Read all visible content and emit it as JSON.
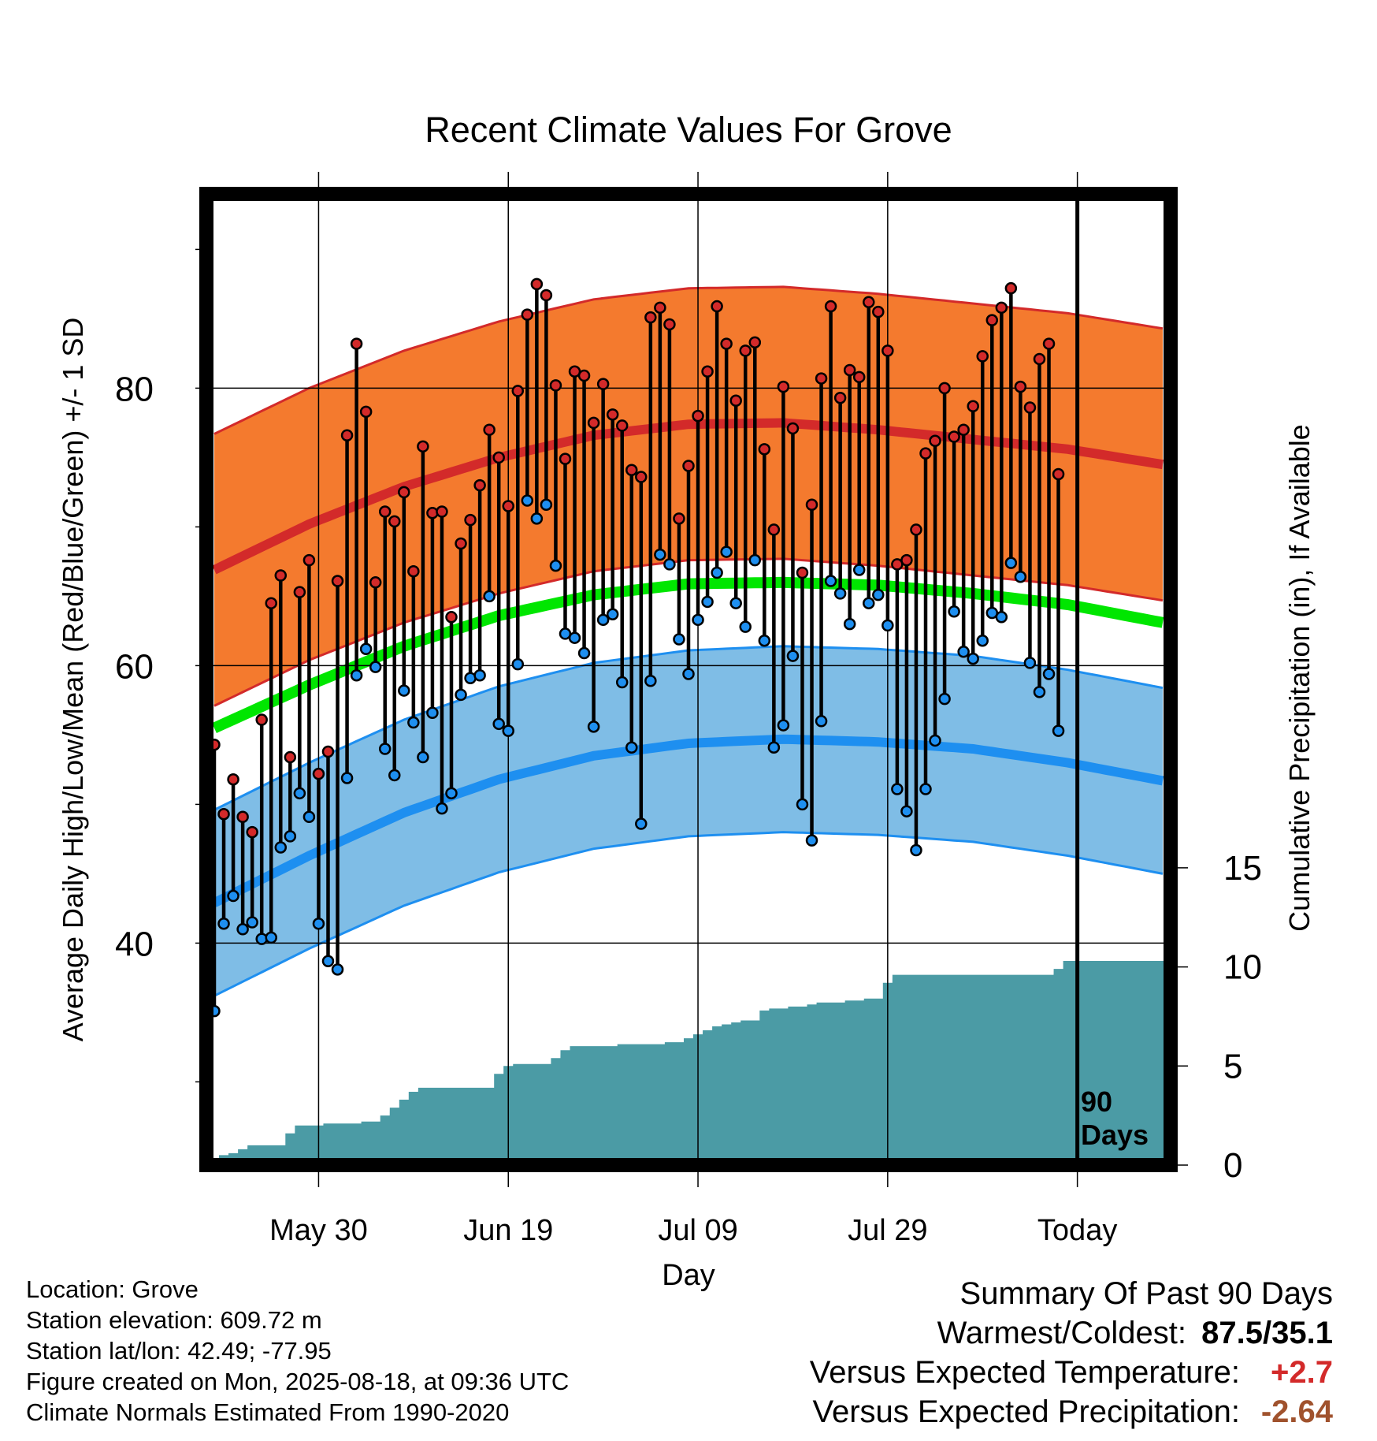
{
  "chart_data": {
    "type": "line",
    "title": "Recent Climate Values For Grove",
    "xlabel": "Day",
    "ylabel": "Average Daily High/Low/Mean (Red/Blue/Green) +/- 1 SD",
    "y2label": "Cumulative Precipitation (in), If Available",
    "x_tick_labels": [
      "May 30",
      "Jun 19",
      "Jul 09",
      "Jul 29",
      "Today"
    ],
    "x_tick_day_index": [
      11,
      31,
      51,
      71,
      91
    ],
    "days": 101,
    "ylim": [
      24,
      94
    ],
    "yticks": [
      40,
      60,
      80
    ],
    "y2lim": [
      0,
      49
    ],
    "y2ticks": [
      0,
      5,
      10,
      15
    ],
    "today_marker": {
      "day_index": 91,
      "label_line1": "90",
      "label_line2": "Days"
    },
    "colors": {
      "high_band": "#f47a2e",
      "high_band_edge": "#d32a2a",
      "high_mean": "#d32a2a",
      "low_band": "#7fbde6",
      "low_band_edge": "#1e8ff0",
      "low_mean": "#1e8ff0",
      "mean": "#00e600",
      "precip": "#4b9ba5",
      "high_point": "#d32a2a",
      "low_point": "#1e8ff0"
    },
    "normal_high": {
      "day_index": [
        0,
        10,
        20,
        30,
        40,
        50,
        60,
        70,
        80,
        90,
        100
      ],
      "values": [
        66.9,
        70.2,
        72.9,
        75.0,
        76.6,
        77.4,
        77.5,
        77.0,
        76.3,
        75.6,
        74.5
      ]
    },
    "normal_high_sd": 9.8,
    "normal_low": {
      "day_index": [
        0,
        10,
        20,
        30,
        40,
        50,
        60,
        70,
        80,
        90,
        100
      ],
      "values": [
        42.9,
        46.3,
        49.4,
        51.8,
        53.5,
        54.4,
        54.7,
        54.5,
        54.0,
        53.0,
        51.7
      ]
    },
    "normal_low_sd": 6.7,
    "normal_mean": {
      "day_index": [
        0,
        10,
        20,
        30,
        40,
        50,
        60,
        70,
        80,
        90,
        100
      ],
      "values": [
        55.5,
        58.6,
        61.4,
        63.6,
        65.1,
        65.9,
        66.0,
        65.8,
        65.2,
        64.4,
        63.1
      ]
    },
    "series": [
      {
        "name": "High",
        "day_index": [
          0,
          1,
          2,
          3,
          4,
          5,
          6,
          7,
          8,
          9,
          10,
          11,
          12,
          13,
          14,
          15,
          16,
          17,
          18,
          19,
          20,
          21,
          22,
          23,
          24,
          25,
          26,
          27,
          28,
          29,
          30,
          31,
          32,
          33,
          34,
          35,
          36,
          37,
          38,
          39,
          40,
          41,
          42,
          43,
          44,
          45,
          46,
          47,
          48,
          49,
          50,
          51,
          52,
          53,
          54,
          55,
          56,
          57,
          58,
          59,
          60,
          61,
          62,
          63,
          64,
          65,
          66,
          67,
          68,
          69,
          70,
          71,
          72,
          73,
          74,
          75,
          76,
          77,
          78,
          79,
          80,
          81,
          82,
          83,
          84,
          85,
          86,
          87,
          88,
          89,
          90
        ],
        "values": [
          54.3,
          49.3,
          51.8,
          49.1,
          48.0,
          56.1,
          64.5,
          66.5,
          53.4,
          65.3,
          67.6,
          52.2,
          53.8,
          66.1,
          76.6,
          83.2,
          78.3,
          66.0,
          71.1,
          70.4,
          72.5,
          66.8,
          75.8,
          71.0,
          71.1,
          63.5,
          68.8,
          70.5,
          73.0,
          77.0,
          75.0,
          71.5,
          79.8,
          85.3,
          87.5,
          86.7,
          80.2,
          74.9,
          81.2,
          80.9,
          77.5,
          80.3,
          78.1,
          77.3,
          74.1,
          73.6,
          85.1,
          85.8,
          84.6,
          70.6,
          74.4,
          78.0,
          81.2,
          85.9,
          83.2,
          79.1,
          82.7,
          83.3,
          75.6,
          69.8,
          80.1,
          77.1,
          66.7,
          71.6,
          80.7,
          85.9,
          79.3,
          81.3,
          80.8,
          86.2,
          85.5,
          82.7,
          67.3,
          67.6,
          69.8,
          75.3,
          76.2,
          80.0,
          76.5,
          77.0,
          78.7,
          82.3,
          84.9,
          85.8,
          87.2,
          80.1,
          78.6,
          82.1,
          83.2,
          73.8,
          null
        ]
      },
      {
        "name": "Low",
        "day_index": [
          0,
          1,
          2,
          3,
          4,
          5,
          6,
          7,
          8,
          9,
          10,
          11,
          12,
          13,
          14,
          15,
          16,
          17,
          18,
          19,
          20,
          21,
          22,
          23,
          24,
          25,
          26,
          27,
          28,
          29,
          30,
          31,
          32,
          33,
          34,
          35,
          36,
          37,
          38,
          39,
          40,
          41,
          42,
          43,
          44,
          45,
          46,
          47,
          48,
          49,
          50,
          51,
          52,
          53,
          54,
          55,
          56,
          57,
          58,
          59,
          60,
          61,
          62,
          63,
          64,
          65,
          66,
          67,
          68,
          69,
          70,
          71,
          72,
          73,
          74,
          75,
          76,
          77,
          78,
          79,
          80,
          81,
          82,
          83,
          84,
          85,
          86,
          87,
          88,
          89,
          90
        ],
        "values": [
          35.1,
          41.4,
          43.4,
          41.0,
          41.5,
          40.3,
          40.4,
          46.9,
          47.7,
          50.8,
          49.1,
          41.4,
          38.7,
          38.1,
          51.9,
          59.3,
          61.2,
          59.9,
          54.0,
          52.1,
          58.2,
          55.9,
          53.4,
          56.6,
          49.7,
          50.8,
          57.9,
          59.1,
          59.3,
          65.0,
          55.8,
          55.3,
          60.1,
          71.9,
          70.6,
          71.6,
          67.2,
          62.3,
          62.0,
          60.9,
          55.6,
          63.3,
          63.7,
          58.8,
          54.1,
          48.6,
          58.9,
          68.0,
          67.3,
          61.9,
          59.4,
          63.3,
          64.6,
          66.7,
          68.2,
          64.5,
          62.8,
          67.6,
          61.8,
          54.1,
          55.7,
          60.7,
          50.0,
          47.4,
          56.0,
          66.1,
          65.2,
          63.0,
          66.9,
          64.5,
          65.1,
          62.9,
          51.1,
          49.5,
          46.7,
          51.1,
          54.6,
          57.6,
          63.9,
          61.0,
          60.5,
          61.8,
          63.8,
          63.5,
          67.4,
          66.4,
          60.2,
          58.1,
          59.4,
          55.3,
          null
        ]
      }
    ],
    "precip_cumulative": {
      "day_index": [
        0,
        1,
        2,
        3,
        4,
        5,
        6,
        7,
        8,
        9,
        10,
        11,
        12,
        13,
        14,
        15,
        16,
        17,
        18,
        19,
        20,
        21,
        22,
        23,
        24,
        25,
        26,
        27,
        28,
        29,
        30,
        31,
        32,
        33,
        34,
        35,
        36,
        37,
        38,
        39,
        40,
        41,
        42,
        43,
        44,
        45,
        46,
        47,
        48,
        49,
        50,
        51,
        52,
        53,
        54,
        55,
        56,
        57,
        58,
        59,
        60,
        61,
        62,
        63,
        64,
        65,
        66,
        67,
        68,
        69,
        70,
        71,
        72,
        73,
        74,
        75,
        76,
        77,
        78,
        79,
        80,
        81,
        82,
        83,
        84,
        85,
        86,
        87,
        88,
        89,
        90,
        91,
        92,
        93,
        94,
        95,
        96,
        97,
        98,
        99,
        100
      ],
      "values": [
        0.3,
        0.5,
        0.6,
        0.8,
        1.0,
        1.0,
        1.0,
        1.0,
        1.6,
        2.0,
        2.0,
        2.0,
        2.1,
        2.1,
        2.1,
        2.1,
        2.2,
        2.2,
        2.5,
        2.9,
        3.3,
        3.7,
        3.9,
        3.9,
        3.9,
        3.9,
        3.9,
        3.9,
        3.9,
        3.9,
        4.6,
        5.0,
        5.1,
        5.1,
        5.1,
        5.1,
        5.4,
        5.8,
        6.0,
        6.0,
        6.0,
        6.0,
        6.0,
        6.1,
        6.1,
        6.1,
        6.1,
        6.1,
        6.2,
        6.2,
        6.4,
        6.6,
        6.8,
        7.0,
        7.1,
        7.2,
        7.3,
        7.3,
        7.8,
        7.9,
        7.9,
        8.0,
        8.0,
        8.1,
        8.2,
        8.2,
        8.2,
        8.3,
        8.3,
        8.4,
        8.4,
        9.2,
        9.6,
        9.6,
        9.6,
        9.6,
        9.6,
        9.6,
        9.6,
        9.6,
        9.6,
        9.6,
        9.6,
        9.6,
        9.6,
        9.6,
        9.6,
        9.6,
        9.6,
        9.9,
        10.3,
        10.3,
        10.3,
        10.3,
        10.3,
        10.3,
        10.3,
        10.3,
        10.3,
        10.3,
        10.3
      ]
    }
  },
  "info": {
    "location": "Location: Grove",
    "elevation": "Station elevation: 609.72 m",
    "latlon": "Station lat/lon: 42.49; -77.95",
    "created": "Figure created on Mon, 2025-08-18, at 09:36 UTC",
    "normals": "Climate Normals Estimated From 1990-2020"
  },
  "summary": {
    "title": "Summary Of Past 90 Days",
    "warm_cold_label": "Warmest/Coldest:",
    "warm_cold_value": "87.5/35.1",
    "temp_label": "Versus Expected Temperature:",
    "temp_value": "+2.7",
    "precip_label": "Versus Expected Precipitation:",
    "precip_value": "-2.64"
  }
}
